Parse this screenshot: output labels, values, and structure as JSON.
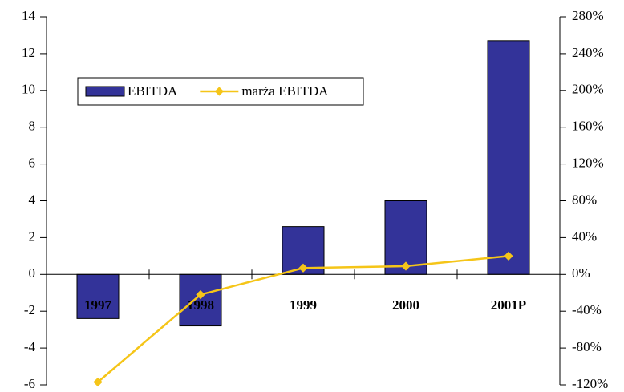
{
  "chart_data": {
    "type": "bar",
    "categories": [
      "1997",
      "1998",
      "1999",
      "2000",
      "2001P"
    ],
    "series": [
      {
        "name": "EBITDA",
        "type": "bar",
        "color": "#333399",
        "values": [
          -2.4,
          -2.8,
          2.6,
          4.0,
          12.7
        ]
      },
      {
        "name": "marża EBITDA",
        "type": "line",
        "axis": "y2",
        "color": "#f5c518",
        "values": [
          -117,
          -22,
          7,
          9,
          20
        ]
      }
    ],
    "ylim": [
      -6,
      14
    ],
    "yticks": [
      -6,
      -4,
      -2,
      0,
      2,
      4,
      6,
      8,
      10,
      12,
      14
    ],
    "y2lim": [
      -120,
      280
    ],
    "y2ticks": [
      {
        "value": -120,
        "label": "-120%"
      },
      {
        "value": -80,
        "label": "-80%"
      },
      {
        "value": -40,
        "label": "-40%"
      },
      {
        "value": 0,
        "label": "0%"
      },
      {
        "value": 40,
        "label": "40%"
      },
      {
        "value": 80,
        "label": "80%"
      },
      {
        "value": 120,
        "label": "120%"
      },
      {
        "value": 160,
        "label": "160%"
      },
      {
        "value": 200,
        "label": "200%"
      },
      {
        "value": 240,
        "label": "240%"
      },
      {
        "value": 280,
        "label": "280%"
      }
    ],
    "legend": "upper left",
    "grid": false
  }
}
